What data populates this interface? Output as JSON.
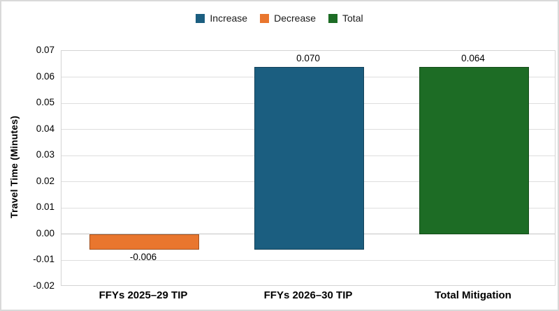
{
  "figure": {
    "background": "#ffffff",
    "border_color": "#d9d9d9"
  },
  "chart_data": {
    "type": "bar",
    "subtype": "waterfall",
    "title": "",
    "xlabel": "",
    "ylabel": "Travel Time (Minutes)",
    "ylim": [
      -0.02,
      0.07
    ],
    "ytick_step": 0.01,
    "grid": true,
    "legend_position": "top",
    "yticks": [
      {
        "label": "0.07",
        "value": 0.07
      },
      {
        "label": "0.06",
        "value": 0.06
      },
      {
        "label": "0.05",
        "value": 0.05
      },
      {
        "label": "0.04",
        "value": 0.04
      },
      {
        "label": "0.03",
        "value": 0.03
      },
      {
        "label": "0.02",
        "value": 0.02
      },
      {
        "label": "0.01",
        "value": 0.01
      },
      {
        "label": "0.00",
        "value": 0.0
      },
      {
        "label": "-0.01",
        "value": -0.01
      },
      {
        "label": "-0.02",
        "value": -0.02
      }
    ],
    "legend": [
      {
        "label": "Increase",
        "color": "#1B5E80"
      },
      {
        "label": "Decrease",
        "color": "#E9762E"
      },
      {
        "label": "Total",
        "color": "#1D6C25"
      }
    ],
    "categories": [
      "FFYs 2025–29 TIP",
      "FFYs 2026–30 TIP",
      "Total Mitigation"
    ],
    "bars": [
      {
        "category": "FFYs 2025–29 TIP",
        "series": "Decrease",
        "color": "#E9762E",
        "start": 0,
        "end": -0.006,
        "value": -0.006,
        "label": "-0.006"
      },
      {
        "category": "FFYs 2026–30 TIP",
        "series": "Increase",
        "color": "#1B5E80",
        "start": -0.006,
        "end": 0.064,
        "value": 0.07,
        "label": "0.070"
      },
      {
        "category": "Total Mitigation",
        "series": "Total",
        "color": "#1D6C25",
        "start": 0,
        "end": 0.064,
        "value": 0.064,
        "label": "0.064"
      }
    ]
  }
}
